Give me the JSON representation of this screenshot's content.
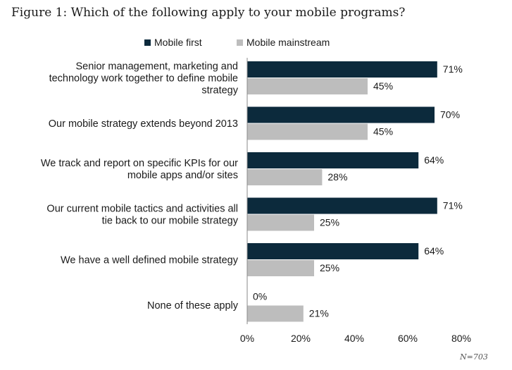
{
  "chart_data": {
    "type": "bar",
    "orientation": "horizontal",
    "title": "Figure 1: Which of the following apply to your mobile programs?",
    "categories": [
      [
        "Senior management, marketing and",
        "technology work together to define mobile",
        "strategy"
      ],
      [
        "Our mobile strategy extends beyond 2013"
      ],
      [
        "We track and report on specific KPIs for our",
        "mobile apps and/or sites"
      ],
      [
        "Our current mobile tactics and activities all",
        "tie back to our mobile strategy"
      ],
      [
        "We have a well defined mobile strategy"
      ],
      [
        "None of these apply"
      ]
    ],
    "series": [
      {
        "name": "Mobile first",
        "values": [
          71,
          70,
          64,
          71,
          64,
          0
        ],
        "labels": [
          "71%",
          "70%",
          "64%",
          "71%",
          "64%",
          "0%"
        ],
        "color": "#0c2a3c"
      },
      {
        "name": "Mobile mainstream",
        "values": [
          45,
          45,
          28,
          25,
          25,
          21
        ],
        "labels": [
          "45%",
          "45%",
          "28%",
          "25%",
          "25%",
          "21%"
        ],
        "color": "#bdbdbd"
      }
    ],
    "xlim": [
      0,
      80
    ],
    "xticks": [
      0,
      20,
      40,
      60,
      80
    ],
    "xtick_labels": [
      "0%",
      "20%",
      "40%",
      "60%",
      "80%"
    ],
    "grid": false,
    "legend_position": "top"
  },
  "note": "N=703"
}
